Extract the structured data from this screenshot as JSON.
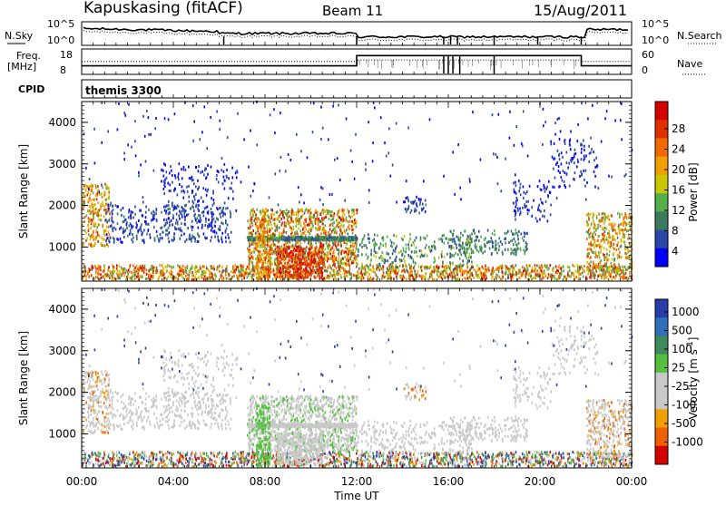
{
  "header": {
    "station": "Kapuskasing (fitACF)",
    "beam": "Beam 11",
    "date": "15/Aug/2011"
  },
  "summary_panels": {
    "nsky_label": "N.Sky",
    "nsearch_label": "N.Search",
    "count_ticks": [
      "10^5",
      "10^0"
    ],
    "freq_label": "Freq.",
    "freq_unit": "[MHz]",
    "freq_ticks": [
      "18",
      "8"
    ],
    "nave_label": "Nave",
    "nave_ticks": [
      "60",
      "0"
    ],
    "cpid_label": "CPID",
    "cpid_value": "themis 3300"
  },
  "colors": {
    "power_scale": [
      "#0000ff",
      "#2a47a8",
      "#3b7a5e",
      "#55b04a",
      "#c8c800",
      "#f0a000",
      "#f06a00",
      "#e03000",
      "#d40000"
    ],
    "velocity_scale": [
      "#2a3ca8",
      "#3070b8",
      "#3d8a5a",
      "#55c040",
      "#c8c8c8",
      "#c8c8c8",
      "#f0a000",
      "#f06000",
      "#d40000"
    ]
  },
  "chart_data": [
    {
      "type": "heatmap",
      "name": "power-panel",
      "ylabel": "Slant Range [km]",
      "xlabel": "",
      "x_ticks": [
        "00:00",
        "04:00",
        "08:00",
        "12:00",
        "16:00",
        "20:00",
        "00:00"
      ],
      "y_ticks": [
        "4000",
        "3000",
        "2000",
        "1000"
      ],
      "ylim": [
        180,
        4500
      ],
      "xlim_hours": [
        0,
        24
      ],
      "colorbar": {
        "label": "Power [dB]",
        "ticks": [
          "28",
          "24",
          "20",
          "16",
          "12",
          "8",
          "4"
        ],
        "range": [
          0,
          30
        ]
      }
    },
    {
      "type": "heatmap",
      "name": "velocity-panel",
      "ylabel": "Slant Range [km]",
      "xlabel": "Time UT",
      "x_ticks": [
        "00:00",
        "04:00",
        "08:00",
        "12:00",
        "16:00",
        "20:00",
        "00:00"
      ],
      "y_ticks": [
        "4000",
        "3000",
        "2000",
        "1000"
      ],
      "ylim": [
        180,
        4500
      ],
      "xlim_hours": [
        0,
        24
      ],
      "colorbar": {
        "label": "Velocity [m s^-1]",
        "ticks": [
          "1000",
          "500",
          "100",
          "25",
          "-25",
          "-100",
          "-500",
          "-1000"
        ]
      }
    }
  ]
}
